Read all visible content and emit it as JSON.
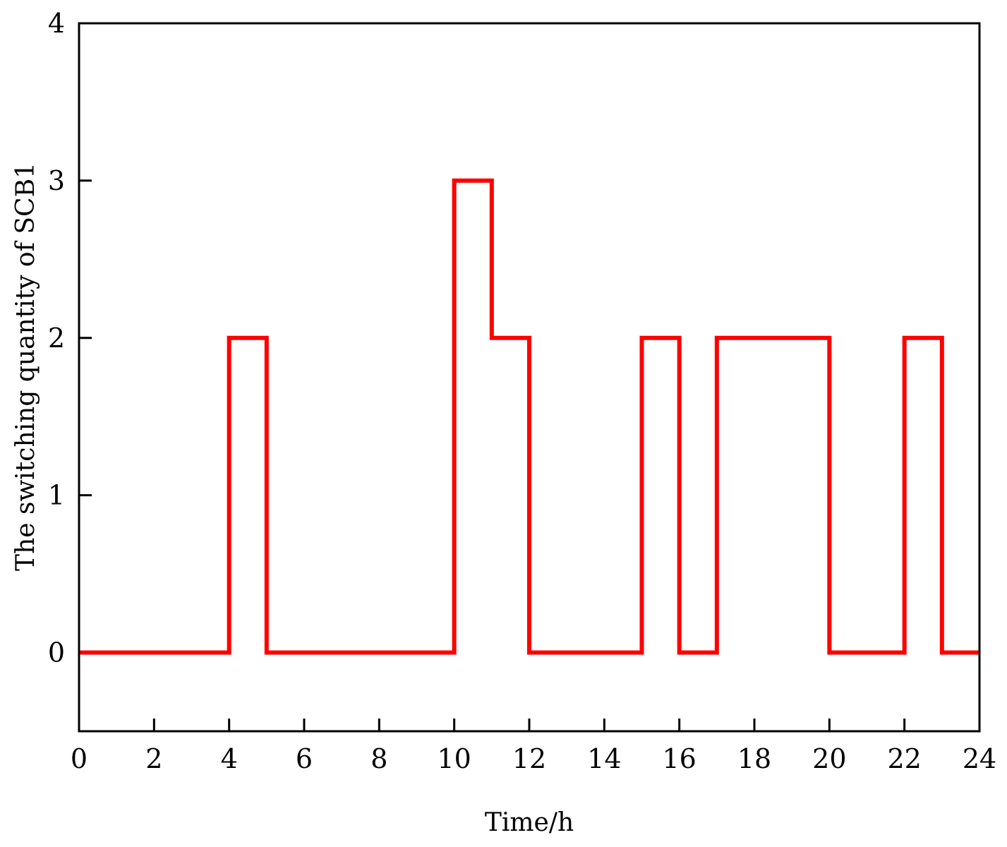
{
  "chart_data": {
    "type": "line",
    "step": "post",
    "title": "",
    "xlabel": "Time/h",
    "ylabel": "The switching quantity of SCB1",
    "xlim": [
      0,
      24
    ],
    "ylim": [
      -0.5,
      4
    ],
    "xticks": [
      0,
      2,
      4,
      6,
      8,
      10,
      12,
      14,
      16,
      18,
      20,
      22,
      24
    ],
    "yticks": [
      0,
      1,
      2,
      3,
      4
    ],
    "grid": false,
    "legend": "none",
    "series": [
      {
        "color": "#ff0000",
        "x": [
          0,
          1,
          2,
          3,
          4,
          5,
          6,
          7,
          8,
          9,
          10,
          11,
          12,
          13,
          14,
          15,
          16,
          17,
          18,
          19,
          20,
          21,
          22,
          23,
          24
        ],
        "values": [
          0,
          0,
          0,
          0,
          2,
          0,
          0,
          0,
          0,
          0,
          3,
          2,
          0,
          0,
          0,
          2,
          0,
          2,
          2,
          2,
          0,
          0,
          2,
          0,
          0
        ]
      }
    ]
  }
}
